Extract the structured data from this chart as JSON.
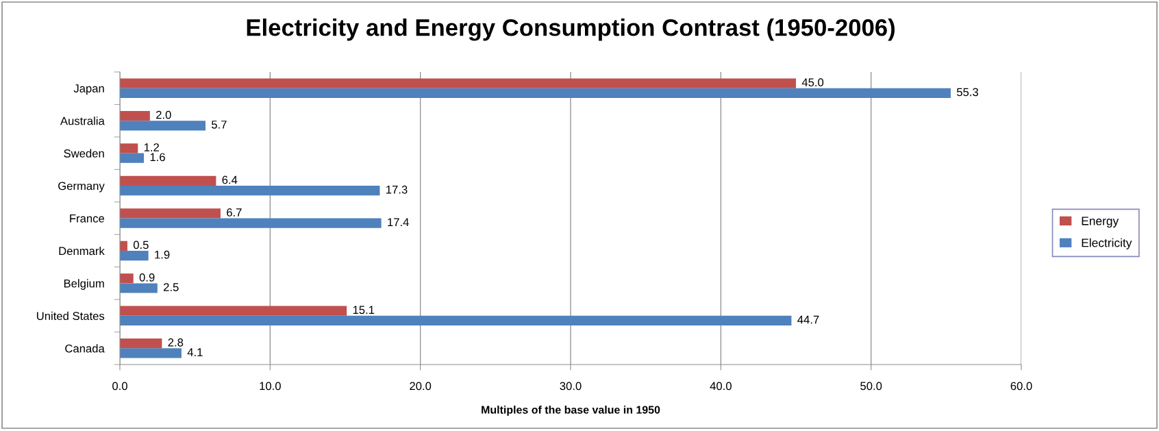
{
  "chart_data": {
    "type": "bar",
    "orientation": "horizontal",
    "title": "Electricity and Energy Consumption Contrast (1950-2006)",
    "xlabel": "Multiples of the base value in 1950",
    "categories": [
      "Japan",
      "Australia",
      "Sweden",
      "Germany",
      "France",
      "Denmark",
      "Belgium",
      "United States",
      "Canada"
    ],
    "series": [
      {
        "name": "Energy",
        "color": "#c0504d",
        "values": [
          45.0,
          2.0,
          1.2,
          6.4,
          6.7,
          0.5,
          0.9,
          15.1,
          2.8
        ],
        "value_labels": [
          "45.0",
          "2.0",
          "1.2",
          "6.4",
          "6.7",
          "0.5",
          "0.9",
          "15.1",
          "2.8"
        ]
      },
      {
        "name": "Electricity",
        "color": "#4f81bd",
        "values": [
          55.3,
          5.7,
          1.6,
          17.3,
          17.4,
          1.9,
          2.5,
          44.7,
          4.1
        ],
        "value_labels": [
          "55.3",
          "5.7",
          "1.6",
          "17.3",
          "17.4",
          "1.9",
          "2.5",
          "44.7",
          "4.1"
        ]
      }
    ],
    "xlim": [
      0,
      60
    ],
    "xticks": [
      {
        "value": 0,
        "label": "0.0"
      },
      {
        "value": 10,
        "label": "10.0"
      },
      {
        "value": 20,
        "label": "20.0"
      },
      {
        "value": 30,
        "label": "30.0"
      },
      {
        "value": 40,
        "label": "40.0"
      },
      {
        "value": 50,
        "label": "50.0"
      },
      {
        "value": 60,
        "label": "60.0"
      }
    ],
    "grid": "x",
    "legend": "right"
  }
}
